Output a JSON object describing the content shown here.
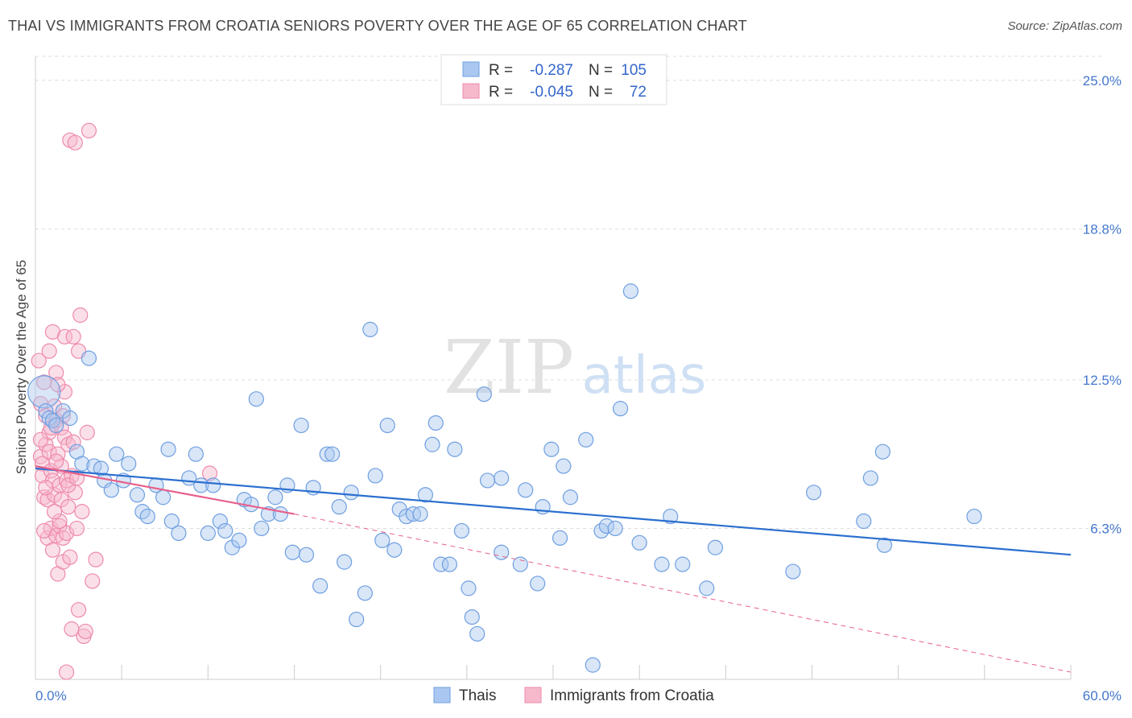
{
  "title": "THAI VS IMMIGRANTS FROM CROATIA SENIORS POVERTY OVER THE AGE OF 65 CORRELATION CHART",
  "source": "Source: ZipAtlas.com",
  "watermark": {
    "zip": "ZIP",
    "atlas": "atlas"
  },
  "colors": {
    "thai_fill": "#a9c7f0",
    "thai_stroke": "#6f9fe0",
    "thai_line": "#2b6fcf",
    "croatia_fill": "#f6b9cc",
    "croatia_stroke": "#ee8aab",
    "croatia_line": "#e8608a",
    "axis_text": "#4477cc",
    "grid": "#dddddd"
  },
  "stats_legend": [
    {
      "r_label": "R =",
      "r_value": "-0.287",
      "n_label": "N =",
      "n_value": "105"
    },
    {
      "r_label": "R =",
      "r_value": "-0.045",
      "n_label": "N =",
      "n_value": "72"
    }
  ],
  "chart_data": {
    "type": "scatter",
    "xlabel": "",
    "ylabel": "Seniors Poverty Over the Age of 65",
    "xlim": [
      0,
      60
    ],
    "ylim": [
      0,
      26.0
    ],
    "x_tick_labels": [
      "0.0%",
      "60.0%"
    ],
    "y_ticks": [
      6.3,
      12.5,
      18.8,
      25.0
    ],
    "y_tick_labels": [
      "6.3%",
      "12.5%",
      "18.8%",
      "25.0%"
    ],
    "grid": true,
    "legend_position": "bottom",
    "series": [
      {
        "name": "Thais",
        "trend": {
          "x": [
            0,
            60
          ],
          "y": [
            8.8,
            5.2
          ]
        },
        "points": [
          {
            "x": 0.5,
            "y": 12.0,
            "size": 20
          },
          {
            "x": 0.6,
            "y": 11.2
          },
          {
            "x": 0.8,
            "y": 10.9
          },
          {
            "x": 1.0,
            "y": 10.8
          },
          {
            "x": 1.2,
            "y": 10.6
          },
          {
            "x": 1.6,
            "y": 11.2
          },
          {
            "x": 2.0,
            "y": 10.9
          },
          {
            "x": 2.4,
            "y": 9.5
          },
          {
            "x": 2.7,
            "y": 9.0
          },
          {
            "x": 3.1,
            "y": 13.4
          },
          {
            "x": 3.4,
            "y": 8.9
          },
          {
            "x": 3.8,
            "y": 8.8
          },
          {
            "x": 4.0,
            "y": 8.3
          },
          {
            "x": 4.4,
            "y": 7.9
          },
          {
            "x": 4.7,
            "y": 9.4
          },
          {
            "x": 5.1,
            "y": 8.3
          },
          {
            "x": 5.4,
            "y": 9.0
          },
          {
            "x": 5.9,
            "y": 7.7
          },
          {
            "x": 6.2,
            "y": 7.0
          },
          {
            "x": 6.5,
            "y": 6.8
          },
          {
            "x": 7.0,
            "y": 8.1
          },
          {
            "x": 7.4,
            "y": 7.6
          },
          {
            "x": 7.7,
            "y": 9.6
          },
          {
            "x": 7.9,
            "y": 6.6
          },
          {
            "x": 8.3,
            "y": 6.1
          },
          {
            "x": 8.9,
            "y": 8.4
          },
          {
            "x": 9.3,
            "y": 9.4
          },
          {
            "x": 9.6,
            "y": 8.1
          },
          {
            "x": 10.0,
            "y": 6.1
          },
          {
            "x": 10.3,
            "y": 8.1
          },
          {
            "x": 10.7,
            "y": 6.6
          },
          {
            "x": 11.0,
            "y": 6.2
          },
          {
            "x": 11.4,
            "y": 5.5
          },
          {
            "x": 11.8,
            "y": 5.8
          },
          {
            "x": 12.1,
            "y": 7.5
          },
          {
            "x": 12.5,
            "y": 7.3
          },
          {
            "x": 12.8,
            "y": 11.7
          },
          {
            "x": 13.1,
            "y": 6.3
          },
          {
            "x": 13.5,
            "y": 6.9
          },
          {
            "x": 13.9,
            "y": 7.6
          },
          {
            "x": 14.2,
            "y": 6.9
          },
          {
            "x": 14.6,
            "y": 8.1
          },
          {
            "x": 14.9,
            "y": 5.3
          },
          {
            "x": 15.4,
            "y": 10.6
          },
          {
            "x": 15.7,
            "y": 5.2
          },
          {
            "x": 16.1,
            "y": 8.0
          },
          {
            "x": 16.5,
            "y": 3.9
          },
          {
            "x": 16.9,
            "y": 9.4
          },
          {
            "x": 17.2,
            "y": 9.4
          },
          {
            "x": 17.6,
            "y": 7.2
          },
          {
            "x": 17.9,
            "y": 4.9
          },
          {
            "x": 18.3,
            "y": 7.8
          },
          {
            "x": 18.6,
            "y": 2.5
          },
          {
            "x": 19.1,
            "y": 3.6
          },
          {
            "x": 19.4,
            "y": 14.6
          },
          {
            "x": 19.7,
            "y": 8.5
          },
          {
            "x": 20.1,
            "y": 5.8
          },
          {
            "x": 20.4,
            "y": 10.6
          },
          {
            "x": 20.8,
            "y": 5.4
          },
          {
            "x": 21.1,
            "y": 7.1
          },
          {
            "x": 21.5,
            "y": 6.8
          },
          {
            "x": 21.9,
            "y": 6.9
          },
          {
            "x": 22.3,
            "y": 6.9
          },
          {
            "x": 22.6,
            "y": 7.7
          },
          {
            "x": 23.0,
            "y": 9.8
          },
          {
            "x": 23.2,
            "y": 10.7
          },
          {
            "x": 23.5,
            "y": 4.8
          },
          {
            "x": 24.0,
            "y": 4.8
          },
          {
            "x": 24.3,
            "y": 9.6
          },
          {
            "x": 24.7,
            "y": 6.2
          },
          {
            "x": 25.1,
            "y": 3.8
          },
          {
            "x": 25.3,
            "y": 2.6
          },
          {
            "x": 25.6,
            "y": 1.9
          },
          {
            "x": 26.0,
            "y": 11.9
          },
          {
            "x": 26.2,
            "y": 8.3
          },
          {
            "x": 27.0,
            "y": 5.3
          },
          {
            "x": 27.0,
            "y": 8.4
          },
          {
            "x": 28.1,
            "y": 4.8
          },
          {
            "x": 28.4,
            "y": 7.9
          },
          {
            "x": 29.1,
            "y": 4.0
          },
          {
            "x": 29.4,
            "y": 7.2
          },
          {
            "x": 29.9,
            "y": 9.6
          },
          {
            "x": 30.4,
            "y": 5.9
          },
          {
            "x": 30.6,
            "y": 8.9
          },
          {
            "x": 31.0,
            "y": 7.6
          },
          {
            "x": 31.9,
            "y": 10.0
          },
          {
            "x": 32.3,
            "y": 0.6
          },
          {
            "x": 32.8,
            "y": 6.2
          },
          {
            "x": 33.1,
            "y": 6.4
          },
          {
            "x": 33.6,
            "y": 6.3
          },
          {
            "x": 33.9,
            "y": 11.3
          },
          {
            "x": 34.5,
            "y": 16.2
          },
          {
            "x": 35.0,
            "y": 5.7
          },
          {
            "x": 36.3,
            "y": 4.8
          },
          {
            "x": 36.8,
            "y": 6.8
          },
          {
            "x": 37.5,
            "y": 4.8
          },
          {
            "x": 38.9,
            "y": 3.8
          },
          {
            "x": 39.4,
            "y": 5.5
          },
          {
            "x": 43.9,
            "y": 4.5
          },
          {
            "x": 45.1,
            "y": 7.8
          },
          {
            "x": 48.0,
            "y": 6.6
          },
          {
            "x": 48.4,
            "y": 8.4
          },
          {
            "x": 49.1,
            "y": 9.5
          },
          {
            "x": 49.2,
            "y": 5.6
          },
          {
            "x": 54.4,
            "y": 6.8
          }
        ]
      },
      {
        "name": "Immigrants from Croatia",
        "trend": {
          "x": [
            0,
            15
          ],
          "y": [
            8.9,
            6.9
          ]
        },
        "trend_dashed": {
          "x": [
            15,
            60
          ],
          "y": [
            6.9,
            0.3
          ]
        },
        "points": [
          {
            "x": 0.2,
            "y": 13.3
          },
          {
            "x": 0.3,
            "y": 11.5
          },
          {
            "x": 0.3,
            "y": 9.3
          },
          {
            "x": 0.4,
            "y": 9.0
          },
          {
            "x": 0.4,
            "y": 8.5
          },
          {
            "x": 0.5,
            "y": 7.6
          },
          {
            "x": 0.5,
            "y": 12.4
          },
          {
            "x": 0.6,
            "y": 9.8
          },
          {
            "x": 0.6,
            "y": 11.0
          },
          {
            "x": 0.7,
            "y": 7.5
          },
          {
            "x": 0.7,
            "y": 5.9
          },
          {
            "x": 0.8,
            "y": 13.7
          },
          {
            "x": 0.8,
            "y": 10.3
          },
          {
            "x": 0.8,
            "y": 9.5
          },
          {
            "x": 0.9,
            "y": 8.7
          },
          {
            "x": 0.9,
            "y": 6.3
          },
          {
            "x": 1.0,
            "y": 14.5
          },
          {
            "x": 1.0,
            "y": 8.3
          },
          {
            "x": 1.0,
            "y": 5.4
          },
          {
            "x": 1.1,
            "y": 11.4
          },
          {
            "x": 1.1,
            "y": 7.7
          },
          {
            "x": 1.2,
            "y": 12.8
          },
          {
            "x": 1.2,
            "y": 10.8
          },
          {
            "x": 1.2,
            "y": 6.0
          },
          {
            "x": 1.3,
            "y": 9.4
          },
          {
            "x": 1.3,
            "y": 4.4
          },
          {
            "x": 1.4,
            "y": 8.1
          },
          {
            "x": 1.4,
            "y": 6.4
          },
          {
            "x": 1.5,
            "y": 10.5
          },
          {
            "x": 1.5,
            "y": 8.9
          },
          {
            "x": 1.5,
            "y": 7.5
          },
          {
            "x": 1.6,
            "y": 5.9
          },
          {
            "x": 1.6,
            "y": 4.9
          },
          {
            "x": 1.7,
            "y": 14.3
          },
          {
            "x": 1.7,
            "y": 12.0
          },
          {
            "x": 1.7,
            "y": 10.1
          },
          {
            "x": 1.8,
            "y": 8.3
          },
          {
            "x": 1.8,
            "y": 6.1
          },
          {
            "x": 1.8,
            "y": 0.3
          },
          {
            "x": 1.9,
            "y": 9.8
          },
          {
            "x": 1.9,
            "y": 7.2
          },
          {
            "x": 2.0,
            "y": 5.1
          },
          {
            "x": 2.0,
            "y": 22.5
          },
          {
            "x": 2.1,
            "y": 8.5
          },
          {
            "x": 2.1,
            "y": 2.1
          },
          {
            "x": 2.2,
            "y": 14.3
          },
          {
            "x": 2.3,
            "y": 22.4
          },
          {
            "x": 2.3,
            "y": 7.8
          },
          {
            "x": 2.4,
            "y": 6.3
          },
          {
            "x": 2.5,
            "y": 13.7
          },
          {
            "x": 2.5,
            "y": 2.9
          },
          {
            "x": 2.6,
            "y": 15.2
          },
          {
            "x": 2.7,
            "y": 7.0
          },
          {
            "x": 2.8,
            "y": 1.8
          },
          {
            "x": 2.9,
            "y": 2.0
          },
          {
            "x": 3.0,
            "y": 10.3
          },
          {
            "x": 3.1,
            "y": 22.9
          },
          {
            "x": 3.3,
            "y": 4.1
          },
          {
            "x": 3.5,
            "y": 5.0
          },
          {
            "x": 10.1,
            "y": 8.6
          },
          {
            "x": 0.9,
            "y": 10.5
          },
          {
            "x": 1.2,
            "y": 9.1
          },
          {
            "x": 0.6,
            "y": 8.0
          },
          {
            "x": 1.4,
            "y": 6.6
          },
          {
            "x": 1.9,
            "y": 8.1
          },
          {
            "x": 0.3,
            "y": 10.0
          },
          {
            "x": 2.2,
            "y": 9.9
          },
          {
            "x": 1.1,
            "y": 7.0
          },
          {
            "x": 0.5,
            "y": 6.2
          },
          {
            "x": 2.4,
            "y": 8.4
          },
          {
            "x": 1.6,
            "y": 11.0
          },
          {
            "x": 1.3,
            "y": 12.3
          }
        ]
      }
    ]
  }
}
